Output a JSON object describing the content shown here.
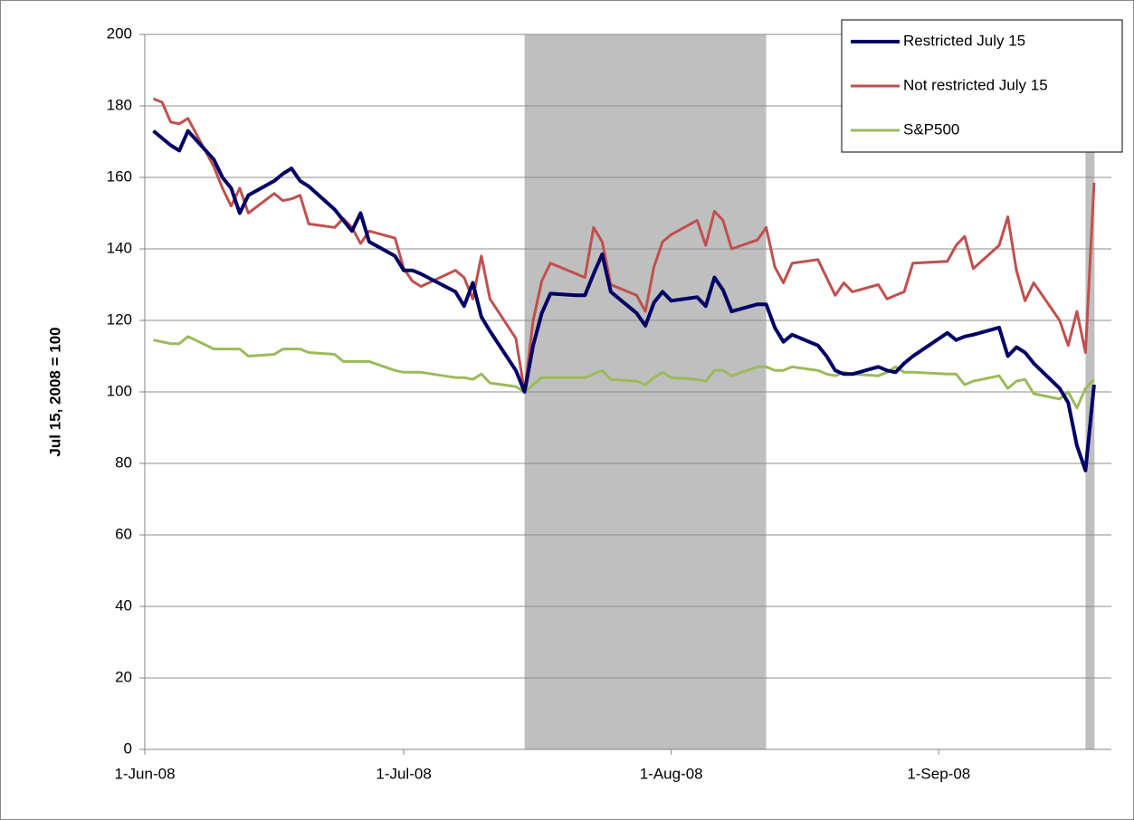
{
  "chart_data": {
    "type": "line",
    "y_label": "Jul 15, 2008 = 100",
    "x": [
      "2008-06-02",
      "2008-06-03",
      "2008-06-04",
      "2008-06-05",
      "2008-06-06",
      "2008-06-09",
      "2008-06-10",
      "2008-06-11",
      "2008-06-12",
      "2008-06-13",
      "2008-06-16",
      "2008-06-17",
      "2008-06-18",
      "2008-06-19",
      "2008-06-20",
      "2008-06-23",
      "2008-06-24",
      "2008-06-25",
      "2008-06-26",
      "2008-06-27",
      "2008-06-30",
      "2008-07-01",
      "2008-07-02",
      "2008-07-03",
      "2008-07-07",
      "2008-07-08",
      "2008-07-09",
      "2008-07-10",
      "2008-07-11",
      "2008-07-14",
      "2008-07-15",
      "2008-07-16",
      "2008-07-17",
      "2008-07-18",
      "2008-07-21",
      "2008-07-22",
      "2008-07-23",
      "2008-07-24",
      "2008-07-25",
      "2008-07-28",
      "2008-07-29",
      "2008-07-30",
      "2008-07-31",
      "2008-08-01",
      "2008-08-04",
      "2008-08-05",
      "2008-08-06",
      "2008-08-07",
      "2008-08-08",
      "2008-08-11",
      "2008-08-12",
      "2008-08-13",
      "2008-08-14",
      "2008-08-15",
      "2008-08-18",
      "2008-08-19",
      "2008-08-20",
      "2008-08-21",
      "2008-08-22",
      "2008-08-25",
      "2008-08-26",
      "2008-08-27",
      "2008-08-28",
      "2008-08-29",
      "2008-09-02",
      "2008-09-03",
      "2008-09-04",
      "2008-09-05",
      "2008-09-08",
      "2008-09-09",
      "2008-09-10",
      "2008-09-11",
      "2008-09-12",
      "2008-09-15",
      "2008-09-16",
      "2008-09-17",
      "2008-09-18",
      "2008-09-19"
    ],
    "series": [
      {
        "name": "Restricted July 15",
        "color": "#000066",
        "values": [
          173,
          171,
          169,
          167.5,
          173,
          165,
          160,
          157,
          150,
          155,
          159,
          161,
          162.5,
          159,
          157.5,
          151,
          148,
          145,
          150,
          142,
          138,
          134,
          134,
          133,
          128,
          124,
          130.5,
          121,
          117,
          106,
          100,
          113,
          122,
          127.5,
          127,
          127,
          133,
          138.5,
          128,
          122,
          118.5,
          125,
          128,
          125.5,
          126.5,
          124,
          132,
          128.5,
          122.5,
          124.5,
          124.5,
          118,
          114,
          116,
          113,
          110,
          106,
          105,
          105,
          107,
          106,
          105.5,
          108,
          110,
          116.5,
          114.5,
          115.5,
          116,
          118,
          110,
          112.5,
          111,
          108,
          101,
          97,
          85,
          78,
          102
        ]
      },
      {
        "name": "Not restricted July 15",
        "color": "#c0504d",
        "values": [
          182,
          181,
          175.5,
          175,
          176.5,
          163,
          157,
          152,
          157,
          150,
          155.5,
          153.5,
          154,
          155,
          147,
          146,
          148.5,
          146,
          141.5,
          145,
          143,
          134.5,
          131,
          129.5,
          134,
          132,
          126,
          138,
          126,
          115,
          100,
          120,
          131,
          136,
          133,
          132,
          146,
          142,
          130,
          127,
          122.5,
          135,
          142,
          144,
          148,
          141,
          150.5,
          148,
          140,
          142.5,
          146,
          135,
          130.5,
          136,
          137,
          132,
          127,
          130.5,
          128,
          130,
          126,
          127,
          128,
          136,
          136.5,
          141,
          143.5,
          134.5,
          141,
          149,
          134,
          125.5,
          130.5,
          120,
          113,
          122.5,
          111,
          158.5
        ]
      },
      {
        "name": "S&P500",
        "color": "#9bbb59",
        "values": [
          114.5,
          114,
          113.5,
          113.5,
          115.5,
          112,
          112,
          112,
          112,
          110,
          110.5,
          112,
          112,
          112,
          111,
          110.5,
          108.5,
          108.5,
          108.5,
          108.5,
          106,
          105.5,
          105.5,
          105.5,
          104,
          104,
          103.5,
          105,
          102.5,
          101.5,
          100,
          102,
          104,
          104,
          104,
          104,
          105,
          106,
          103.5,
          103,
          102,
          104,
          105.5,
          104,
          103.5,
          103,
          106,
          106,
          104.5,
          107,
          107,
          106,
          106,
          107,
          106,
          105,
          104.5,
          105.5,
          105,
          104.5,
          105.5,
          107,
          105.5,
          105.5,
          105,
          105,
          102,
          103,
          104.5,
          101,
          103,
          103.5,
          99.5,
          98,
          100,
          95.5,
          101,
          103.5
        ]
      }
    ],
    "shaded_periods": [
      [
        "2008-07-15",
        "2008-08-12"
      ],
      [
        "2008-09-18",
        "2008-09-19"
      ]
    ],
    "shade_color": "#bfbfbf",
    "xlim": [
      "2008-06-01",
      "2008-09-21"
    ],
    "xticks": [
      {
        "value": "2008-06-01",
        "label": "1-Jun-08"
      },
      {
        "value": "2008-07-01",
        "label": "1-Jul-08"
      },
      {
        "value": "2008-08-01",
        "label": "1-Aug-08"
      },
      {
        "value": "2008-09-01",
        "label": "1-Sep-08"
      }
    ],
    "ylim": [
      0,
      200
    ],
    "yticks": [
      0,
      20,
      40,
      60,
      80,
      100,
      120,
      140,
      160,
      180,
      200
    ],
    "grid": true,
    "legend": "top-right"
  }
}
